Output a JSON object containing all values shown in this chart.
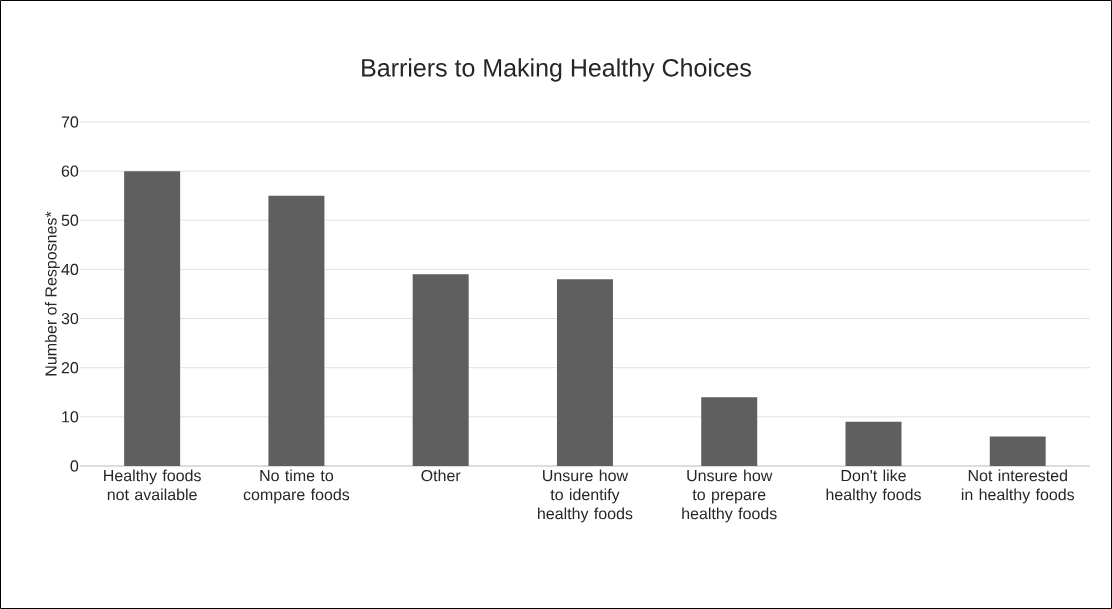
{
  "chart_data": {
    "type": "bar",
    "title": "Barriers to Making Healthy Choices",
    "ylabel": "Number of Resposnes*",
    "categories": [
      "Healthy foods not available",
      "No time to compare foods",
      "Other",
      "Unsure how to identify healthy foods",
      "Unsure how to prepare healthy foods",
      "Don't like healthy foods",
      "Not interested in healthy foods"
    ],
    "values": [
      60,
      55,
      39,
      38,
      14,
      9,
      6
    ],
    "color": "#5f5f5f",
    "ylim": [
      0,
      70
    ],
    "yticks": [
      0,
      10,
      20,
      30,
      40,
      50,
      60,
      70
    ],
    "grid": "y"
  }
}
